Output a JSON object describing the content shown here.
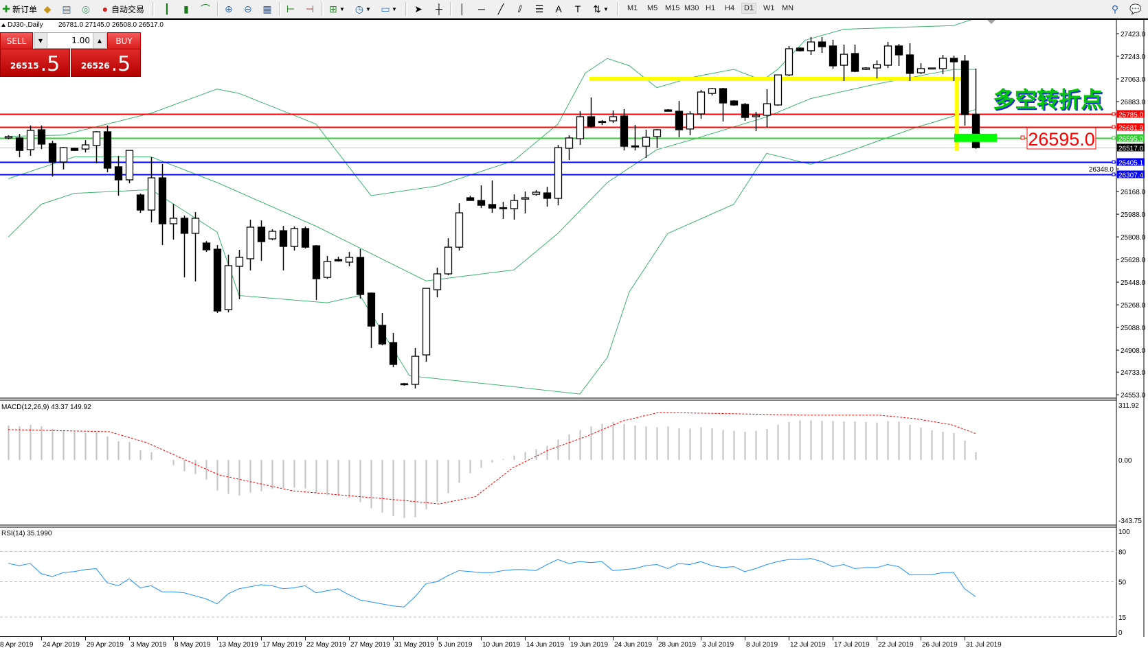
{
  "toolbar": {
    "new_order_label": "新订单",
    "auto_trading_label": "自动交易",
    "icons": [
      "new-order-icon",
      "market-watch-icon",
      "navigator-icon",
      "signals-icon",
      "auto-trading-icon",
      "bar-chart-icon",
      "candlestick-icon",
      "line-chart-icon",
      "zoom-in-icon",
      "zoom-out-icon",
      "tile-windows-icon",
      "chart-shift-icon",
      "autoscroll-icon",
      "indicators-icon",
      "periods-icon",
      "templates-icon",
      "cursor-icon",
      "crosshair-icon",
      "vertical-line-icon",
      "horizontal-line-icon",
      "trendline-icon",
      "equidistant-channel-icon",
      "fibonacci-icon",
      "text-icon",
      "text-label-icon",
      "arrows-icon",
      "search-icon",
      "chat-icon"
    ],
    "timeframes": [
      "M1",
      "M5",
      "M15",
      "M30",
      "H1",
      "H4",
      "D1",
      "W1",
      "MN"
    ],
    "active_timeframe": "D1"
  },
  "chart_header": {
    "symbol_period": "DJ30-,Daily",
    "ohlc_text": "26781.0 27145.0 26508.0 26517.0"
  },
  "one_click": {
    "sell_label": "SELL",
    "buy_label": "BUY",
    "lot": "1.00",
    "sell_price_main": "26515",
    "sell_price_frac": ".5",
    "buy_price_main": "26526",
    "buy_price_frac": ".5"
  },
  "annotation": {
    "text": "多空转折点",
    "price_label": "26595.0",
    "text_color": "#00c800",
    "highlight_color": "#ffff00"
  },
  "chart_data": [
    {
      "type": "candlestick",
      "symbol": "DJ30-",
      "period": "Daily",
      "ylim": [
        24553,
        27600
      ],
      "y_tick_labels": [
        "27423.0",
        "27243.0",
        "27063.0",
        "26883.0",
        "26348.0",
        "26168.0",
        "25988.0",
        "25808.0",
        "25628.0",
        "25448.0",
        "25268.0",
        "25088.0",
        "24908.0",
        "24733.0",
        "24553.0"
      ],
      "x_tick_labels": [
        "8 Apr 2019",
        "24 Apr 2019",
        "29 Apr 2019",
        "3 May 2019",
        "8 May 2019",
        "13 May 2019",
        "17 May 2019",
        "22 May 2019",
        "27 May 2019",
        "31 May 2019",
        "5 Jun 2019",
        "10 Jun 2019",
        "14 Jun 2019",
        "19 Jun 2019",
        "24 Jun 2019",
        "28 Jun 2019",
        "3 Jul 2019",
        "8 Jul 2019",
        "12 Jul 2019",
        "17 Jul 2019",
        "22 Jul 2019",
        "26 Jul 2019",
        "31 Jul 2019"
      ],
      "ohlc": [
        [
          26594,
          26615,
          26583,
          26605
        ],
        [
          26594,
          26626,
          26441,
          26495
        ],
        [
          26501,
          26692,
          26452,
          26654
        ],
        [
          26659,
          26692,
          26506,
          26545
        ],
        [
          26550,
          26572,
          26288,
          26403
        ],
        [
          26403,
          26523,
          26343,
          26517
        ],
        [
          26512,
          26517,
          26490,
          26495
        ],
        [
          26506,
          26577,
          26479,
          26539
        ],
        [
          26534,
          26648,
          26392,
          26643
        ],
        [
          26643,
          26692,
          26321,
          26354
        ],
        [
          26365,
          26452,
          26135,
          26261
        ],
        [
          26261,
          26495,
          26234,
          26495
        ],
        [
          26141,
          26152,
          25999,
          26021
        ],
        [
          26021,
          26441,
          25923,
          26277
        ],
        [
          26277,
          26387,
          25743,
          25912
        ],
        [
          25912,
          26070,
          25786,
          25956
        ],
        [
          25956,
          25977,
          25486,
          25836
        ],
        [
          25836,
          26005,
          25454,
          25956
        ],
        [
          25759,
          25775,
          25688,
          25705
        ],
        [
          25710,
          25743,
          25203,
          25219
        ],
        [
          25230,
          25666,
          25208,
          25579
        ],
        [
          25574,
          25705,
          25312,
          25645
        ],
        [
          25634,
          25945,
          25541,
          25885
        ],
        [
          25885,
          25939,
          25617,
          25770
        ],
        [
          25792,
          25868,
          25781,
          25852
        ],
        [
          25857,
          25895,
          25541,
          25732
        ],
        [
          25732,
          25890,
          25699,
          25874
        ],
        [
          25874,
          25890,
          25715,
          25726
        ],
        [
          25737,
          25743,
          25306,
          25475
        ],
        [
          25486,
          25656,
          25475,
          25612
        ],
        [
          25628,
          25650,
          25612,
          25617
        ],
        [
          25607,
          25688,
          25574,
          25645
        ],
        [
          25645,
          25710,
          25317,
          25350
        ],
        [
          25361,
          25366,
          24925,
          25099
        ],
        [
          25105,
          25203,
          24946,
          24957
        ],
        [
          24968,
          25045,
          24772,
          24794
        ],
        [
          24641,
          24647,
          24625,
          24636
        ],
        [
          24636,
          24925,
          24603,
          24859
        ],
        [
          24870,
          25399,
          24815,
          25399
        ],
        [
          25388,
          25563,
          25328,
          25514
        ],
        [
          25514,
          25797,
          25503,
          25726
        ],
        [
          25726,
          26075,
          25699,
          25999
        ],
        [
          26119,
          26135,
          26097,
          26097
        ],
        [
          26097,
          26217,
          26037,
          26059
        ],
        [
          26065,
          26256,
          25999,
          26037
        ],
        [
          26040,
          26086,
          25950,
          26037
        ],
        [
          26032,
          26146,
          25945,
          26097
        ],
        [
          26108,
          26168,
          25994,
          26119
        ],
        [
          26146,
          26179,
          26135,
          26163
        ],
        [
          26157,
          26206,
          26048,
          26114
        ],
        [
          26114,
          26539,
          26059,
          26517
        ],
        [
          26512,
          26615,
          26419,
          26594
        ],
        [
          26588,
          26806,
          26539,
          26763
        ],
        [
          26763,
          26916,
          26676,
          26687
        ],
        [
          26725,
          26736,
          26697,
          26719
        ],
        [
          26730,
          26812,
          26714,
          26763
        ],
        [
          26768,
          26823,
          26495,
          26528
        ],
        [
          26531,
          26697,
          26495,
          26528
        ],
        [
          26528,
          26659,
          26436,
          26599
        ],
        [
          26605,
          26665,
          26512,
          26659
        ],
        [
          26817,
          26823,
          26806,
          26806
        ],
        [
          26806,
          26888,
          26599,
          26659
        ],
        [
          26665,
          26806,
          26616,
          26785
        ],
        [
          26785,
          26976,
          26746,
          26959
        ],
        [
          26948,
          26992,
          26932,
          26986
        ],
        [
          26986,
          26992,
          26725,
          26872
        ],
        [
          26888,
          26894,
          26850,
          26856
        ],
        [
          26861,
          26872,
          26730,
          26757
        ],
        [
          26763,
          26801,
          26648,
          26774
        ],
        [
          26774,
          26981,
          26681,
          26866
        ],
        [
          26856,
          27095,
          26850,
          27095
        ],
        [
          27095,
          27325,
          27085,
          27303
        ],
        [
          27308,
          27314,
          27281,
          27287
        ],
        [
          27287,
          27396,
          27254,
          27357
        ],
        [
          27357,
          27396,
          27270,
          27319
        ],
        [
          27325,
          27374,
          27145,
          27167
        ],
        [
          27172,
          27336,
          27047,
          27259
        ],
        [
          27265,
          27336,
          27117,
          27123
        ],
        [
          27139,
          27156,
          27134,
          27150
        ],
        [
          27150,
          27210,
          27068,
          27177
        ],
        [
          27172,
          27357,
          27150,
          27325
        ],
        [
          27325,
          27341,
          27167,
          27254
        ],
        [
          27254,
          27346,
          27047,
          27107
        ],
        [
          27112,
          27188,
          27101,
          27145
        ],
        [
          27145,
          27150,
          27139,
          27150
        ],
        [
          27145,
          27254,
          27101,
          27227
        ],
        [
          27227,
          27248,
          27047,
          27199
        ],
        [
          27205,
          27254,
          26692,
          26779
        ],
        [
          26781,
          27145,
          26508,
          26517
        ]
      ],
      "bollinger": {
        "color": "#3cb371",
        "upper": [
          [
            0,
            26606
          ],
          [
            5,
            26617
          ],
          [
            13,
            26791
          ],
          [
            19,
            26983
          ],
          [
            21,
            26948
          ],
          [
            28,
            26704
          ],
          [
            33,
            26136
          ],
          [
            39,
            26212
          ],
          [
            46,
            26414
          ],
          [
            50,
            26704
          ],
          [
            52.5,
            27110
          ],
          [
            54.5,
            27226
          ],
          [
            56.5,
            27168
          ],
          [
            59,
            26994
          ],
          [
            62.5,
            27081
          ],
          [
            66,
            27139
          ],
          [
            68.6,
            27052
          ],
          [
            70,
            27139
          ],
          [
            72.5,
            27371
          ],
          [
            76,
            27458
          ],
          [
            86,
            27487
          ],
          [
            88,
            27545
          ]
        ],
        "middle": [
          [
            0,
            26270
          ],
          [
            6,
            26443
          ],
          [
            13,
            26443
          ],
          [
            19,
            26240
          ],
          [
            28,
            25893
          ],
          [
            38,
            25458
          ],
          [
            46,
            25545
          ],
          [
            50,
            25835
          ],
          [
            54.5,
            26240
          ],
          [
            59,
            26501
          ],
          [
            62.5,
            26588
          ],
          [
            69,
            26762
          ],
          [
            73,
            26907
          ],
          [
            79,
            27023
          ],
          [
            86,
            27139
          ],
          [
            88,
            27139
          ]
        ],
        "lower": [
          [
            0,
            25806
          ],
          [
            3,
            26067
          ],
          [
            6,
            26154
          ],
          [
            13,
            26183
          ],
          [
            19,
            25846
          ],
          [
            21,
            25342
          ],
          [
            29,
            25284
          ],
          [
            32,
            25342
          ],
          [
            36.5,
            24704
          ],
          [
            46,
            24617
          ],
          [
            52,
            24559
          ],
          [
            54.5,
            24849
          ],
          [
            56.5,
            25371
          ],
          [
            60,
            25835
          ],
          [
            63,
            25951
          ],
          [
            66,
            26067
          ],
          [
            69,
            26472
          ],
          [
            73,
            26385
          ],
          [
            76,
            26472
          ],
          [
            82.5,
            26675
          ],
          [
            88,
            26820
          ]
        ]
      },
      "levels": [
        {
          "value": 26785.0,
          "label": "26785.0",
          "color": "#ff0000"
        },
        {
          "value": 26681.9,
          "label": "26681.9",
          "color": "#ff0000"
        },
        {
          "value": 26595.0,
          "label": "26595.0",
          "color": "#32cd32"
        },
        {
          "value": 26517.0,
          "label": "26517.0",
          "color": "#000000",
          "line_color": "#c0c0c0"
        },
        {
          "value": 26405.1,
          "label": "26405.1",
          "color": "#0000ff"
        },
        {
          "value": 26307.4,
          "label": "26307.4",
          "color": "#0000ff"
        }
      ],
      "yellow_level": 27063
    },
    {
      "type": "bar",
      "title": "MACD(12,26,9) 43.37 149.92",
      "ylim": [
        -343.75,
        311.92
      ],
      "y_tick_labels": [
        "311.92",
        "0.00",
        "-343.75"
      ],
      "histogram": [
        195,
        191,
        199,
        191,
        176,
        168,
        160,
        152,
        156,
        133,
        105,
        101,
        55,
        43,
        0,
        -30,
        -65,
        -81,
        -112,
        -174,
        -194,
        -202,
        -186,
        -178,
        -166,
        -160,
        -158,
        -162,
        -190,
        -200,
        -205,
        -215,
        -240,
        -275,
        -300,
        -320,
        -330,
        -325,
        -280,
        -240,
        -190,
        -130,
        -75,
        -45,
        -15,
        5,
        25,
        45,
        60,
        80,
        115,
        145,
        170,
        190,
        205,
        215,
        205,
        195,
        190,
        185,
        190,
        180,
        178,
        185,
        180,
        170,
        165,
        160,
        165,
        175,
        200,
        215,
        225,
        225,
        222,
        220,
        218,
        218,
        215,
        212,
        220,
        218,
        199,
        183,
        168,
        160,
        152,
        109,
        43.37
      ],
      "signal": [
        [
          0,
          172
        ],
        [
          9.2,
          160
        ],
        [
          12.6,
          98
        ],
        [
          19.2,
          -86
        ],
        [
          25.9,
          -176
        ],
        [
          35.9,
          -230
        ],
        [
          39.2,
          -250
        ],
        [
          42.5,
          -209
        ],
        [
          45.9,
          -45
        ],
        [
          49.2,
          57
        ],
        [
          52.5,
          131
        ],
        [
          55.9,
          221
        ],
        [
          59.2,
          270
        ],
        [
          65.9,
          262
        ],
        [
          72.5,
          254
        ],
        [
          79.2,
          254
        ],
        [
          82.5,
          234
        ],
        [
          85.8,
          200
        ],
        [
          88,
          149.92
        ]
      ],
      "histogram_color": "#c0c0c0",
      "signal_color": "#ff0000"
    },
    {
      "type": "line",
      "title": "RSI(14) 35.1990",
      "ylim": [
        0,
        100
      ],
      "levels": [
        80,
        50,
        15
      ],
      "y_tick_labels": [
        "100",
        "80",
        "50",
        "15",
        "0"
      ],
      "values": [
        68,
        66,
        68,
        58,
        55,
        59,
        60,
        62,
        63,
        49,
        46,
        53,
        44,
        46,
        40,
        40,
        39,
        36,
        33,
        28,
        38,
        43,
        45,
        47,
        46,
        43,
        44,
        46,
        39,
        41,
        43,
        37,
        32,
        30,
        28,
        26,
        25,
        35,
        48,
        50,
        56,
        61,
        60,
        59,
        59,
        61,
        62,
        62,
        61,
        67,
        72,
        68,
        70,
        69,
        70,
        61,
        62,
        63,
        66,
        67,
        63,
        68,
        67,
        70,
        66,
        64,
        65,
        60,
        63,
        67,
        70,
        72,
        72,
        73,
        70,
        65,
        67,
        63,
        64,
        64,
        67,
        65,
        57,
        57,
        57,
        59,
        59,
        43,
        35.199
      ],
      "color": "#1e90ff"
    }
  ]
}
